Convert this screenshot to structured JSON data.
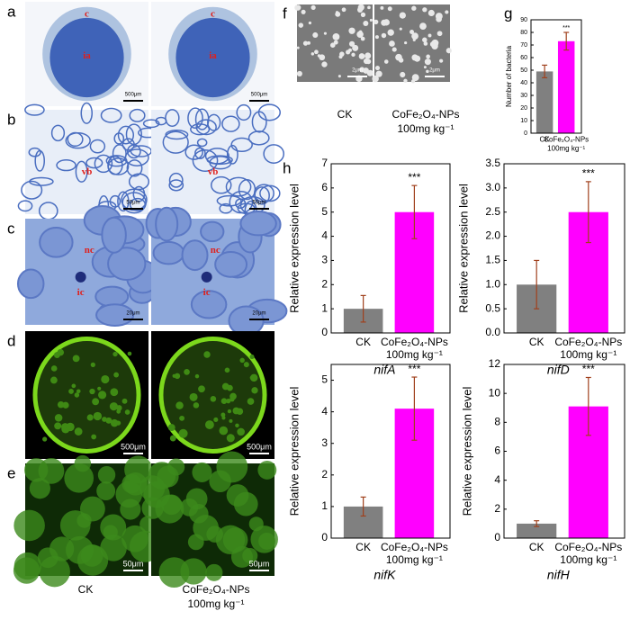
{
  "micrographs": {
    "a": {
      "letter": "a",
      "labels": [
        "c",
        "ia"
      ],
      "scale_bar": "500μm"
    },
    "b": {
      "letter": "b",
      "labels": [
        "vb"
      ],
      "scale_bar": "50μm"
    },
    "c": {
      "letter": "c",
      "labels": [
        "nc",
        "ic"
      ],
      "scale_bar": "20μm"
    },
    "d": {
      "letter": "d",
      "scale_bar": "500μm"
    },
    "e": {
      "letter": "e",
      "scale_bar": "50μm"
    },
    "f": {
      "letter": "f",
      "scale_bar": "2μm"
    }
  },
  "left_labels": [
    [
      "CK"
    ],
    [
      "CoFe₂O₄-NPs",
      "100mg kg⁻¹"
    ]
  ],
  "f_labels": [
    [
      "CK"
    ],
    [
      "CoFe₂O₄-NPs",
      "100mg kg⁻¹"
    ]
  ],
  "panel_letters": {
    "g": "g",
    "h": "h"
  },
  "chart_data": [
    {
      "type": "bar",
      "categories": [
        [
          "CK"
        ],
        [
          "CoFe₂O₄-NPs",
          "100mg kg⁻¹"
        ]
      ],
      "values": [
        49,
        73
      ],
      "errors": [
        5,
        7
      ],
      "colors": [
        "#808080",
        "#ff00ff"
      ],
      "ylabel": "Number of bacteria",
      "annotation": "***",
      "ylim": [
        0,
        90
      ],
      "yticks": [
        0,
        10,
        20,
        30,
        40,
        50,
        60,
        70,
        80,
        90
      ]
    },
    {
      "type": "bar",
      "categories": [
        [
          "CK"
        ],
        [
          "CoFe₂O₄-NPs",
          "100mg kg⁻¹"
        ]
      ],
      "values": [
        1,
        5
      ],
      "errors": [
        0.55,
        1.1
      ],
      "colors": [
        "#808080",
        "#ff00ff"
      ],
      "ylabel": "Relative expression level",
      "xlabel": "nifA",
      "annotation": "***",
      "ylim": [
        0,
        7
      ],
      "yticks": [
        0,
        1,
        2,
        3,
        4,
        5,
        6,
        7
      ]
    },
    {
      "type": "bar",
      "categories": [
        [
          "CK"
        ],
        [
          "CoFe₂O₄-NPs",
          "100mg kg⁻¹"
        ]
      ],
      "values": [
        1.0,
        2.5
      ],
      "errors": [
        0.5,
        0.63
      ],
      "colors": [
        "#808080",
        "#ff00ff"
      ],
      "ylabel": "Relative expression level",
      "xlabel": "nifD",
      "annotation": "***",
      "ylim": [
        0,
        3.5
      ],
      "yticks": [
        {
          "value": 0,
          "label": "0.0"
        },
        0.5,
        {
          "value": 1,
          "label": "1.0"
        },
        1.5,
        {
          "value": 2,
          "label": "2.0"
        },
        2.5,
        {
          "value": 3,
          "label": "3.0"
        },
        3.5
      ]
    },
    {
      "type": "bar",
      "categories": [
        [
          "CK"
        ],
        [
          "CoFe₂O₄-NPs",
          "100mg kg⁻¹"
        ]
      ],
      "values": [
        1,
        4.1
      ],
      "errors": [
        0.3,
        1.0
      ],
      "colors": [
        "#808080",
        "#ff00ff"
      ],
      "ylabel": "Relative expression level",
      "xlabel": "nifK",
      "annotation": "***",
      "ylim": [
        0,
        5.5
      ],
      "yticks": [
        0,
        1,
        2,
        3,
        4,
        5
      ]
    },
    {
      "type": "bar",
      "categories": [
        [
          "CK"
        ],
        [
          "CoFe₂O₄-NPs",
          "100mg kg⁻¹"
        ]
      ],
      "values": [
        1,
        9.1
      ],
      "errors": [
        0.2,
        2
      ],
      "colors": [
        "#808080",
        "#ff00ff"
      ],
      "ylabel": "Relative expression level",
      "xlabel": "nifH",
      "annotation": "***",
      "ylim": [
        0,
        12
      ],
      "yticks": [
        0,
        2,
        4,
        6,
        8,
        10,
        12
      ]
    }
  ]
}
